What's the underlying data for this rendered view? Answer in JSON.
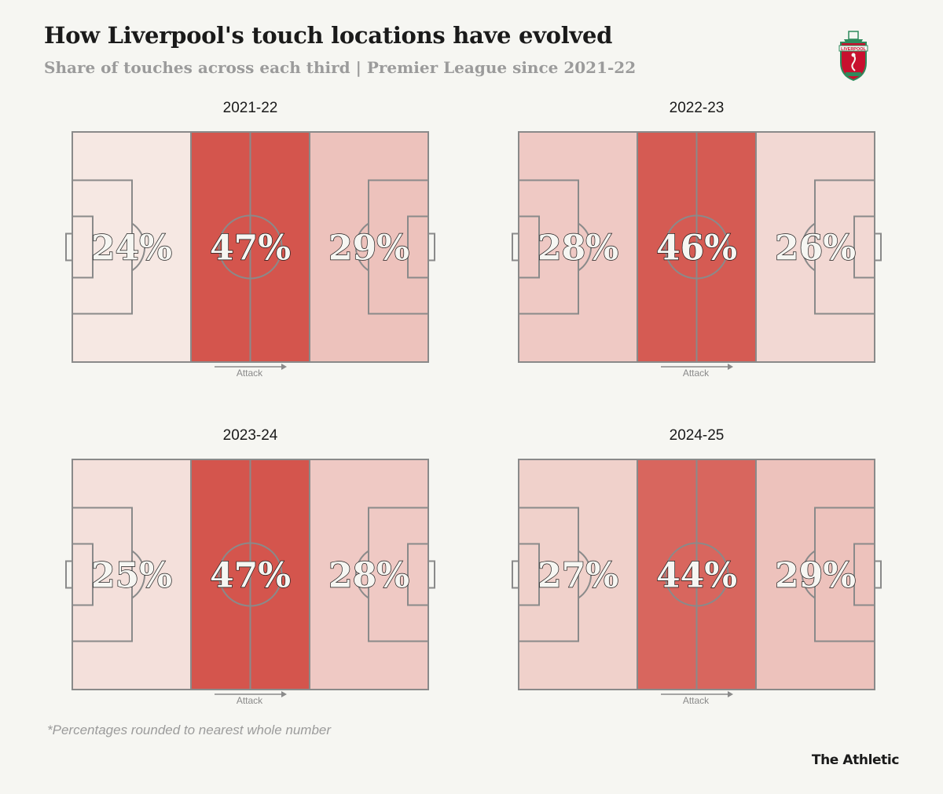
{
  "title": "How Liverpool's touch locations have evolved",
  "subtitle": "Share of touches across each third | Premier League since 2021-22",
  "footnote": "*Percentages rounded to nearest whole number",
  "brand": "The Athletic",
  "logo": {
    "icon": "liverpool-fc-crest-icon",
    "text": "LIVERPOOL"
  },
  "attack_label": "Attack",
  "colors": {
    "low": "#f8f3ee",
    "high": "#d4554d",
    "line": "#8a8a8a",
    "background": "#f6f6f2"
  },
  "chart_data": [
    {
      "type": "heatmap",
      "title": "2021-22",
      "categories": [
        "Defensive third",
        "Middle third",
        "Attacking third"
      ],
      "values": [
        24,
        47,
        29
      ],
      "labels": [
        "24%",
        "47%",
        "29%"
      ]
    },
    {
      "type": "heatmap",
      "title": "2022-23",
      "categories": [
        "Defensive third",
        "Middle third",
        "Attacking third"
      ],
      "values": [
        28,
        46,
        26
      ],
      "labels": [
        "28%",
        "46%",
        "26%"
      ]
    },
    {
      "type": "heatmap",
      "title": "2023-24",
      "categories": [
        "Defensive third",
        "Middle third",
        "Attacking third"
      ],
      "values": [
        25,
        47,
        28
      ],
      "labels": [
        "25%",
        "47%",
        "28%"
      ]
    },
    {
      "type": "heatmap",
      "title": "2024-25",
      "categories": [
        "Defensive third",
        "Middle third",
        "Attacking third"
      ],
      "values": [
        27,
        44,
        29
      ],
      "labels": [
        "27%",
        "44%",
        "29%"
      ]
    }
  ]
}
